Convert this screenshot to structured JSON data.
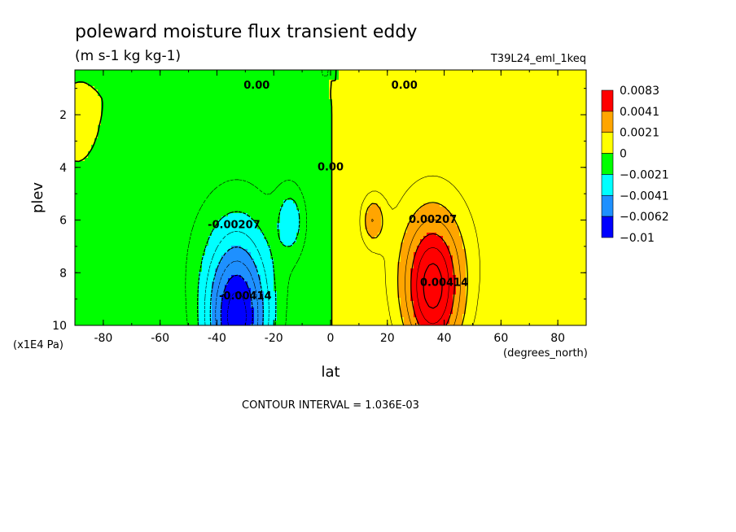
{
  "chart_data": {
    "type": "heatmap",
    "title": "poleward moisture flux transient eddy",
    "subtitle": "(m s-1 kg kg-1)",
    "dataset_label": "T39L24_eml_1keq",
    "xlabel": "lat",
    "ylabel": "plev",
    "x_units": "(degrees_north)",
    "y_units": "(x1E4 Pa)",
    "xlim": [
      -90,
      90
    ],
    "ylim": [
      0.3,
      10
    ],
    "y_inverted": true,
    "x_ticks": [
      "-80",
      "-60",
      "-40",
      "-20",
      "0",
      "20",
      "40",
      "60",
      "80"
    ],
    "y_ticks": [
      "2",
      "4",
      "6",
      "8",
      "10"
    ],
    "contour_interval_text": "CONTOUR INTERVAL = 1.036E-03",
    "colorbar": {
      "labels": [
        "0.0083",
        "0.0041",
        "0.0021",
        "0",
        "−0.0021",
        "−0.0041",
        "−0.0062",
        "−0.01"
      ],
      "colors": [
        "#ff0000",
        "#ffa500",
        "#ffff00",
        "#00ff00",
        "#00ffff",
        "#1e90ff",
        "#0000ff"
      ]
    },
    "contour_labels": [
      {
        "text": "0.00",
        "lat": -26,
        "plev": 0.9
      },
      {
        "text": "0.00",
        "lat": 26,
        "plev": 0.9
      },
      {
        "text": "0.00",
        "lat": 0,
        "plev": 4.0
      },
      {
        "text": "-0.00207",
        "lat": -34,
        "plev": 6.2
      },
      {
        "text": "-0.00414",
        "lat": -30,
        "plev": 8.9
      },
      {
        "text": "0.00207",
        "lat": 36,
        "plev": 6.0
      },
      {
        "text": "0.00414",
        "lat": 40,
        "plev": 8.4
      }
    ],
    "features": [
      {
        "name": "southern negative flux",
        "center_lat": -33,
        "center_plev": 9.8,
        "min": -0.0072
      },
      {
        "name": "northern positive flux",
        "center_lat": 36,
        "center_plev": 8.6,
        "max": 0.006
      }
    ]
  }
}
